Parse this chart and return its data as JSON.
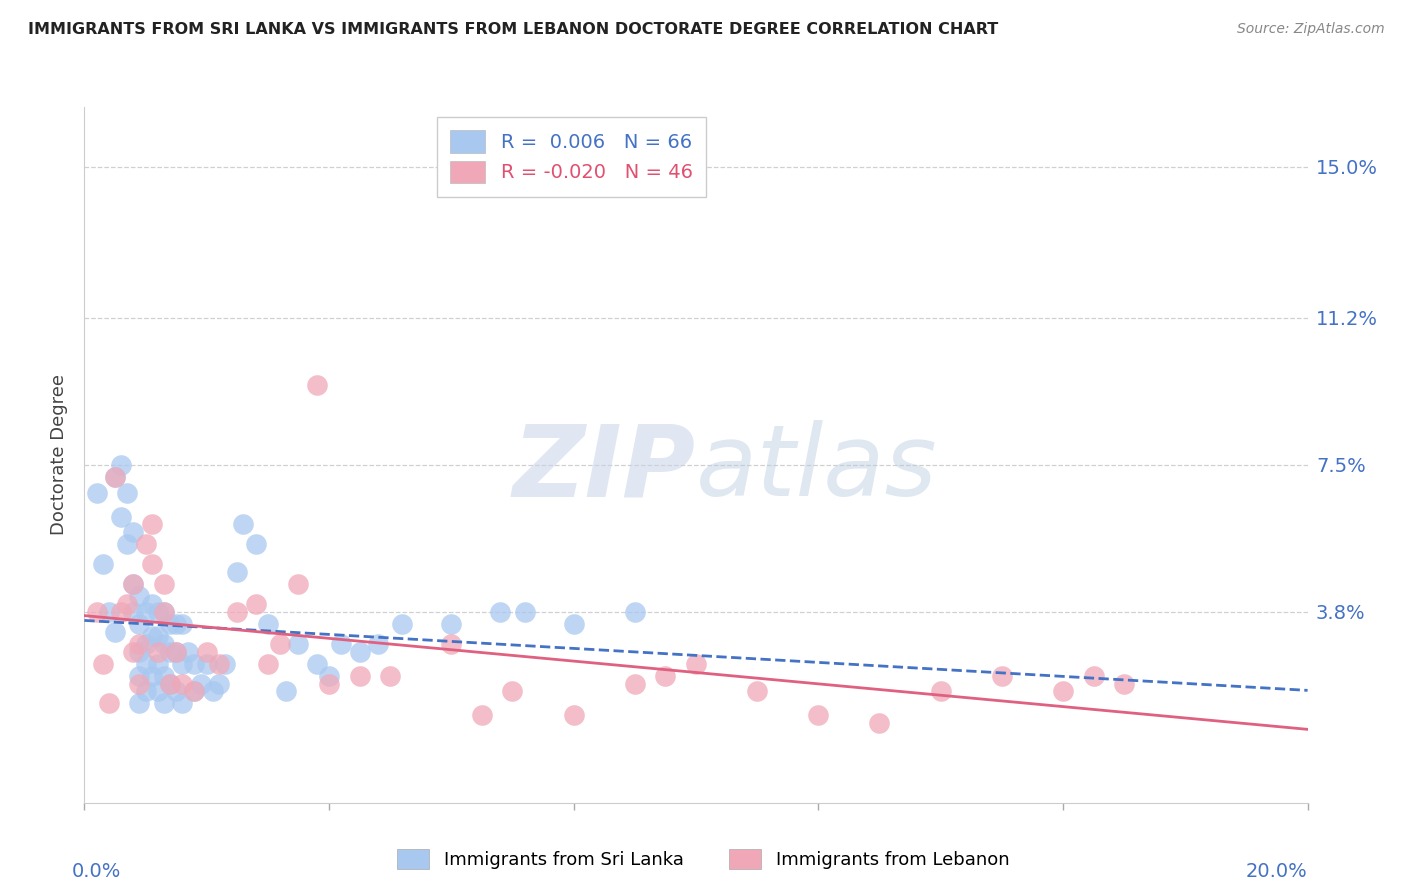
{
  "title": "IMMIGRANTS FROM SRI LANKA VS IMMIGRANTS FROM LEBANON DOCTORATE DEGREE CORRELATION CHART",
  "source": "Source: ZipAtlas.com",
  "ylabel": "Doctorate Degree",
  "ytick_labels": [
    "15.0%",
    "11.2%",
    "7.5%",
    "3.8%"
  ],
  "ytick_values": [
    0.15,
    0.112,
    0.075,
    0.038
  ],
  "xlim": [
    0.0,
    0.2
  ],
  "ylim": [
    -0.01,
    0.165
  ],
  "sri_lanka_color": "#a8c8f0",
  "lebanon_color": "#f0a8b8",
  "sri_lanka_line_color": "#4472c4",
  "lebanon_line_color": "#e06080",
  "legend_sri_lanka": "R =  0.006   N = 66",
  "legend_lebanon": "R = -0.020   N = 46",
  "sri_lanka_x": [
    0.002,
    0.003,
    0.004,
    0.005,
    0.005,
    0.006,
    0.006,
    0.007,
    0.007,
    0.008,
    0.008,
    0.008,
    0.009,
    0.009,
    0.009,
    0.009,
    0.009,
    0.01,
    0.01,
    0.01,
    0.01,
    0.011,
    0.011,
    0.011,
    0.012,
    0.012,
    0.012,
    0.012,
    0.013,
    0.013,
    0.013,
    0.013,
    0.014,
    0.014,
    0.014,
    0.015,
    0.015,
    0.015,
    0.016,
    0.016,
    0.016,
    0.017,
    0.018,
    0.018,
    0.019,
    0.02,
    0.021,
    0.022,
    0.023,
    0.025,
    0.026,
    0.028,
    0.03,
    0.033,
    0.035,
    0.038,
    0.04,
    0.042,
    0.045,
    0.048,
    0.052,
    0.06,
    0.068,
    0.072,
    0.08,
    0.09
  ],
  "sri_lanka_y": [
    0.068,
    0.05,
    0.038,
    0.033,
    0.072,
    0.062,
    0.075,
    0.055,
    0.068,
    0.038,
    0.058,
    0.045,
    0.035,
    0.042,
    0.028,
    0.022,
    0.015,
    0.038,
    0.03,
    0.025,
    0.018,
    0.04,
    0.032,
    0.022,
    0.038,
    0.032,
    0.025,
    0.018,
    0.038,
    0.03,
    0.022,
    0.015,
    0.035,
    0.028,
    0.02,
    0.035,
    0.028,
    0.018,
    0.035,
    0.025,
    0.015,
    0.028,
    0.025,
    0.018,
    0.02,
    0.025,
    0.018,
    0.02,
    0.025,
    0.048,
    0.06,
    0.055,
    0.035,
    0.018,
    0.03,
    0.025,
    0.022,
    0.03,
    0.028,
    0.03,
    0.035,
    0.035,
    0.038,
    0.038,
    0.035,
    0.038
  ],
  "lebanon_x": [
    0.002,
    0.003,
    0.004,
    0.005,
    0.006,
    0.007,
    0.008,
    0.008,
    0.009,
    0.009,
    0.01,
    0.011,
    0.011,
    0.012,
    0.013,
    0.013,
    0.014,
    0.015,
    0.016,
    0.018,
    0.02,
    0.022,
    0.025,
    0.028,
    0.03,
    0.032,
    0.035,
    0.038,
    0.04,
    0.045,
    0.05,
    0.06,
    0.065,
    0.07,
    0.08,
    0.09,
    0.095,
    0.1,
    0.11,
    0.12,
    0.13,
    0.14,
    0.15,
    0.16,
    0.165,
    0.17
  ],
  "lebanon_y": [
    0.038,
    0.025,
    0.015,
    0.072,
    0.038,
    0.04,
    0.028,
    0.045,
    0.02,
    0.03,
    0.055,
    0.05,
    0.06,
    0.028,
    0.038,
    0.045,
    0.02,
    0.028,
    0.02,
    0.018,
    0.028,
    0.025,
    0.038,
    0.04,
    0.025,
    0.03,
    0.045,
    0.095,
    0.02,
    0.022,
    0.022,
    0.03,
    0.012,
    0.018,
    0.012,
    0.02,
    0.022,
    0.025,
    0.018,
    0.012,
    0.01,
    0.018,
    0.022,
    0.018,
    0.022,
    0.02
  ],
  "grid_color": "#d0d0d0",
  "background_color": "#ffffff"
}
